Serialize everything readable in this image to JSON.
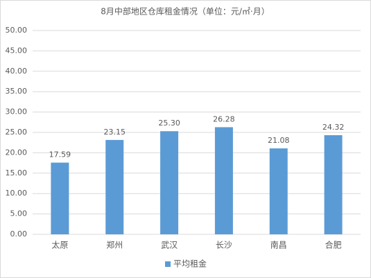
{
  "chart_data": {
    "type": "bar",
    "title": "8月中部地区仓库租金情况（单位：元/㎡·月）",
    "categories": [
      "太原",
      "郑州",
      "武汉",
      "长沙",
      "南昌",
      "合肥"
    ],
    "series": [
      {
        "name": "平均租金",
        "color": "#5b9bd5",
        "values": [
          17.59,
          23.15,
          25.3,
          26.28,
          21.08,
          24.32
        ],
        "value_labels": [
          "17.59",
          "23.15",
          "25.30",
          "26.28",
          "21.08",
          "24.32"
        ]
      }
    ],
    "ylim": [
      0,
      50
    ],
    "yticks": [
      {
        "value": 0,
        "label": "0.00"
      },
      {
        "value": 5,
        "label": "5.00"
      },
      {
        "value": 10,
        "label": "10.00"
      },
      {
        "value": 15,
        "label": "15.00"
      },
      {
        "value": 20,
        "label": "20.00"
      },
      {
        "value": 25,
        "label": "25.00"
      },
      {
        "value": 30,
        "label": "30.00"
      },
      {
        "value": 35,
        "label": "35.00"
      },
      {
        "value": 40,
        "label": "40.00"
      },
      {
        "value": 45,
        "label": "45.00"
      },
      {
        "value": 50,
        "label": "50.00"
      }
    ],
    "grid": true,
    "legend": "bottom"
  }
}
